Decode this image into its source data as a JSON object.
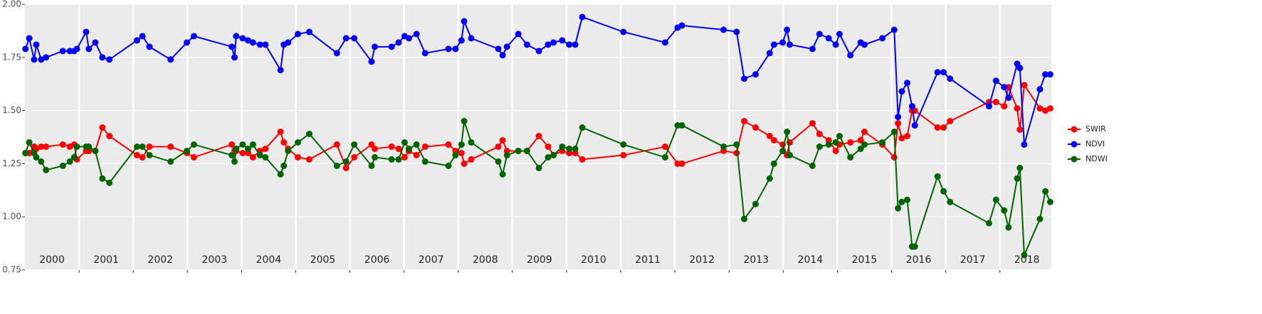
{
  "chart_data": {
    "type": "line",
    "x": [
      2000.01,
      2000.08,
      2000.17,
      2000.21,
      2000.3,
      2000.39,
      2000.7,
      2000.83,
      2000.91,
      2000.96,
      2001.13,
      2001.18,
      2001.3,
      2001.43,
      2001.56,
      2002.07,
      2002.17,
      2002.3,
      2002.69,
      2002.99,
      2003.12,
      2003.82,
      2003.87,
      2003.9,
      2004.02,
      2004.12,
      2004.21,
      2004.34,
      2004.44,
      2004.72,
      2004.78,
      2004.86,
      2005.04,
      2005.25,
      2005.76,
      2005.93,
      2006.08,
      2006.4,
      2006.46,
      2006.77,
      2006.9,
      2007.01,
      2007.09,
      2007.23,
      2007.39,
      2007.82,
      2007.95,
      2008.06,
      2008.11,
      2008.24,
      2008.74,
      2008.82,
      2008.9,
      2009.11,
      2009.27,
      2009.49,
      2009.66,
      2009.76,
      2009.92,
      2010.05,
      2010.16,
      2010.29,
      2011.05,
      2011.82,
      2012.05,
      2012.13,
      2012.9,
      2013.14,
      2013.28,
      2013.49,
      2013.75,
      2013.83,
      2013.99,
      2014.07,
      2014.12,
      2014.54,
      2014.67,
      2014.84,
      2014.97,
      2015.04,
      2015.24,
      2015.43,
      2015.5,
      2015.83,
      2016.05,
      2016.12,
      2016.19,
      2016.29,
      2016.38,
      2016.43,
      2016.85,
      2016.96,
      2017.08,
      2017.8,
      2017.93,
      2018.08,
      2018.16,
      2018.32,
      2018.37,
      2018.45,
      2018.74,
      2018.84,
      2018.93
    ],
    "series": [
      {
        "name": "SWIR",
        "color": "#ff0000",
        "values": [
          1.3,
          1.3,
          1.33,
          1.32,
          1.33,
          1.33,
          1.34,
          1.33,
          1.34,
          1.27,
          1.31,
          1.31,
          1.31,
          1.42,
          1.38,
          1.29,
          1.28,
          1.33,
          1.33,
          1.3,
          1.28,
          1.34,
          1.31,
          1.31,
          1.3,
          1.3,
          1.28,
          1.31,
          1.32,
          1.4,
          1.35,
          1.32,
          1.28,
          1.27,
          1.34,
          1.23,
          1.28,
          1.34,
          1.32,
          1.33,
          1.32,
          1.28,
          1.31,
          1.29,
          1.33,
          1.34,
          1.31,
          1.3,
          1.25,
          1.27,
          1.33,
          1.36,
          1.31,
          1.31,
          1.31,
          1.38,
          1.33,
          1.29,
          1.31,
          1.3,
          1.3,
          1.27,
          1.29,
          1.33,
          1.25,
          1.25,
          1.31,
          1.3,
          1.45,
          1.42,
          1.38,
          1.36,
          1.34,
          1.29,
          1.35,
          1.44,
          1.39,
          1.36,
          1.31,
          1.34,
          1.35,
          1.36,
          1.4,
          1.34,
          1.28,
          1.44,
          1.37,
          1.38,
          1.5,
          1.5,
          1.42,
          1.42,
          1.45,
          1.54,
          1.54,
          1.52,
          1.61,
          1.51,
          1.41,
          1.62,
          1.51,
          1.5,
          1.51
        ]
      },
      {
        "name": "NDVI",
        "color": "#0000ff",
        "values": [
          1.79,
          1.84,
          1.74,
          1.81,
          1.74,
          1.75,
          1.78,
          1.78,
          1.78,
          1.79,
          1.87,
          1.79,
          1.82,
          1.75,
          1.74,
          1.83,
          1.85,
          1.8,
          1.74,
          1.82,
          1.85,
          1.8,
          1.75,
          1.85,
          1.84,
          1.83,
          1.82,
          1.81,
          1.81,
          1.69,
          1.81,
          1.82,
          1.86,
          1.87,
          1.77,
          1.84,
          1.84,
          1.73,
          1.8,
          1.8,
          1.82,
          1.85,
          1.84,
          1.86,
          1.77,
          1.79,
          1.79,
          1.83,
          1.92,
          1.84,
          1.79,
          1.76,
          1.8,
          1.86,
          1.81,
          1.78,
          1.81,
          1.82,
          1.83,
          1.81,
          1.81,
          1.94,
          1.87,
          1.82,
          1.89,
          1.9,
          1.88,
          1.87,
          1.65,
          1.67,
          1.77,
          1.81,
          1.82,
          1.88,
          1.81,
          1.79,
          1.86,
          1.84,
          1.81,
          1.86,
          1.76,
          1.82,
          1.81,
          1.84,
          1.88,
          1.47,
          1.59,
          1.63,
          1.52,
          1.43,
          1.68,
          1.68,
          1.65,
          1.52,
          1.64,
          1.61,
          1.56,
          1.72,
          1.7,
          1.34,
          1.6,
          1.67,
          1.67
        ]
      },
      {
        "name": "NDWI",
        "color": "#006400",
        "values": [
          1.3,
          1.35,
          1.3,
          1.28,
          1.26,
          1.22,
          1.24,
          1.26,
          1.28,
          1.33,
          1.33,
          1.33,
          1.31,
          1.18,
          1.16,
          1.33,
          1.33,
          1.29,
          1.26,
          1.31,
          1.34,
          1.29,
          1.26,
          1.32,
          1.34,
          1.32,
          1.34,
          1.29,
          1.28,
          1.2,
          1.24,
          1.31,
          1.35,
          1.39,
          1.24,
          1.26,
          1.34,
          1.24,
          1.28,
          1.27,
          1.27,
          1.35,
          1.32,
          1.34,
          1.26,
          1.24,
          1.29,
          1.34,
          1.45,
          1.35,
          1.26,
          1.2,
          1.29,
          1.31,
          1.31,
          1.23,
          1.28,
          1.29,
          1.33,
          1.32,
          1.32,
          1.42,
          1.34,
          1.28,
          1.43,
          1.43,
          1.33,
          1.34,
          0.99,
          1.06,
          1.18,
          1.25,
          1.31,
          1.4,
          1.29,
          1.24,
          1.33,
          1.34,
          1.35,
          1.38,
          1.28,
          1.32,
          1.34,
          1.35,
          1.4,
          1.04,
          1.07,
          1.08,
          0.86,
          0.86,
          1.19,
          1.12,
          1.07,
          0.97,
          1.08,
          1.03,
          0.95,
          1.18,
          1.23,
          0.82,
          0.99,
          1.12,
          1.07
        ]
      }
    ],
    "xlim": [
      2000,
      2018.95
    ],
    "xticks": [
      {
        "value": 2000.5,
        "label": "2000"
      },
      {
        "value": 2001.5,
        "label": "2001"
      },
      {
        "value": 2002.5,
        "label": "2002"
      },
      {
        "value": 2003.5,
        "label": "2003"
      },
      {
        "value": 2004.5,
        "label": "2004"
      },
      {
        "value": 2005.5,
        "label": "2005"
      },
      {
        "value": 2006.5,
        "label": "2006"
      },
      {
        "value": 2007.5,
        "label": "2007"
      },
      {
        "value": 2008.5,
        "label": "2008"
      },
      {
        "value": 2009.5,
        "label": "2009"
      },
      {
        "value": 2010.5,
        "label": "2010"
      },
      {
        "value": 2011.5,
        "label": "2011"
      },
      {
        "value": 2012.5,
        "label": "2012"
      },
      {
        "value": 2013.5,
        "label": "2013"
      },
      {
        "value": 2014.5,
        "label": "2014"
      },
      {
        "value": 2015.5,
        "label": "2015"
      },
      {
        "value": 2016.5,
        "label": "2016"
      },
      {
        "value": 2017.5,
        "label": "2017"
      },
      {
        "value": 2018.5,
        "label": "2018"
      }
    ],
    "xgrid": [
      2001,
      2002,
      2003,
      2004,
      2005,
      2006,
      2007,
      2008,
      2009,
      2010,
      2011,
      2012,
      2013,
      2014,
      2015,
      2016,
      2017,
      2018
    ],
    "ylim": [
      0.75,
      2.0
    ],
    "yticks": [
      {
        "value": 0.75,
        "label": "0.75"
      },
      {
        "value": 1.0,
        "label": "1.00"
      },
      {
        "value": 1.25,
        "label": "1.25"
      },
      {
        "value": 1.5,
        "label": "1.50"
      },
      {
        "value": 1.75,
        "label": "1.75"
      },
      {
        "value": 2.0,
        "label": "2.00"
      }
    ],
    "grid": true,
    "legend": "right"
  }
}
